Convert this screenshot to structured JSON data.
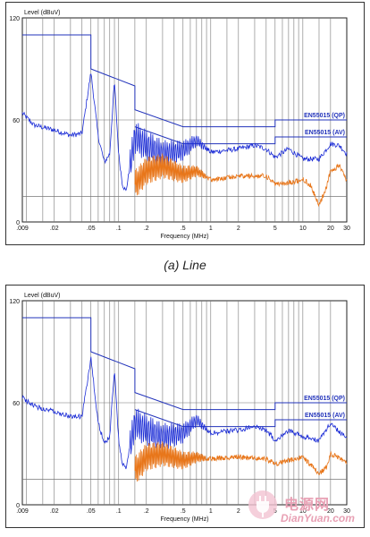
{
  "caption_line": "(a) Line",
  "watermark": {
    "chinese": "电源网",
    "site": "DianYuan.com"
  },
  "colors": {
    "limit": "#2233bb",
    "qp_trace": "#1a2bd6",
    "av_trace": "#e8761a",
    "grid": "#777777"
  },
  "chart_data": [
    {
      "type": "line",
      "ylabel": "Level (dBuV)",
      "xlabel": "Frequency (MHz)",
      "xscale": "log",
      "xlim": [
        0.009,
        30
      ],
      "ylim": [
        0,
        120
      ],
      "yticks": [
        "120",
        "60",
        "0"
      ],
      "xticks": [
        {
          "v": 0.009,
          "label": ".009"
        },
        {
          "v": 0.02,
          "label": ".02"
        },
        {
          "v": 0.05,
          "label": ".05"
        },
        {
          "v": 0.1,
          "label": ".1"
        },
        {
          "v": 0.2,
          "label": ".2"
        },
        {
          "v": 0.5,
          "label": ".5"
        },
        {
          "v": 1,
          "label": "1"
        },
        {
          "v": 2,
          "label": "2"
        },
        {
          "v": 5,
          "label": "5"
        },
        {
          "v": 10,
          "label": "10"
        },
        {
          "v": 20,
          "label": "20"
        },
        {
          "v": 30,
          "label": "30"
        }
      ],
      "limits": [
        {
          "name": "EN55015 (QP)",
          "points": [
            [
              0.009,
              110
            ],
            [
              0.05,
              110
            ],
            [
              0.05,
              90
            ],
            [
              0.15,
              80
            ],
            [
              0.15,
              66
            ],
            [
              0.5,
              56
            ],
            [
              5,
              56
            ],
            [
              5,
              60
            ],
            [
              30,
              60
            ]
          ]
        },
        {
          "name": "EN55015 (AV)",
          "points": [
            [
              0.15,
              56
            ],
            [
              0.5,
              46
            ],
            [
              5,
              46
            ],
            [
              5,
              50
            ],
            [
              30,
              50
            ]
          ]
        }
      ],
      "hline": 15,
      "series": [
        {
          "kind": "qp",
          "points": [
            [
              0.009,
              64
            ],
            [
              0.012,
              57
            ],
            [
              0.02,
              54
            ],
            [
              0.03,
              51
            ],
            [
              0.04,
              52
            ],
            [
              0.05,
              88
            ],
            [
              0.06,
              50
            ],
            [
              0.07,
              35
            ],
            [
              0.08,
              40
            ],
            [
              0.09,
              83
            ],
            [
              0.1,
              40
            ],
            [
              0.11,
              22
            ],
            [
              0.12,
              18
            ],
            [
              0.15,
              50
            ],
            [
              0.2,
              45
            ],
            [
              0.3,
              40
            ],
            [
              0.5,
              42
            ],
            [
              0.7,
              48
            ],
            [
              1,
              41
            ],
            [
              2,
              43
            ],
            [
              3,
              45
            ],
            [
              4,
              43
            ],
            [
              5,
              38
            ],
            [
              7,
              43
            ],
            [
              10,
              37
            ],
            [
              15,
              37
            ],
            [
              20,
              46
            ],
            [
              25,
              45
            ],
            [
              30,
              40
            ]
          ]
        },
        {
          "kind": "av",
          "points": [
            [
              0.15,
              22
            ],
            [
              0.2,
              30
            ],
            [
              0.3,
              33
            ],
            [
              0.5,
              28
            ],
            [
              0.7,
              30
            ],
            [
              1,
              25
            ],
            [
              2,
              27
            ],
            [
              4,
              27
            ],
            [
              5,
              22
            ],
            [
              7,
              23
            ],
            [
              10,
              25
            ],
            [
              12,
              22
            ],
            [
              15,
              10
            ],
            [
              18,
              20
            ],
            [
              20,
              30
            ],
            [
              25,
              33
            ],
            [
              30,
              24
            ]
          ]
        }
      ]
    },
    {
      "type": "line",
      "ylabel": "Level (dBuV)",
      "xlabel": "Frequency (MHz)",
      "xscale": "log",
      "xlim": [
        0.009,
        30
      ],
      "ylim": [
        0,
        120
      ],
      "yticks": [
        "120",
        "60",
        "0"
      ],
      "xticks": [
        {
          "v": 0.009,
          "label": ".009"
        },
        {
          "v": 0.02,
          "label": ".02"
        },
        {
          "v": 0.05,
          "label": ".05"
        },
        {
          "v": 0.1,
          "label": ".1"
        },
        {
          "v": 0.2,
          "label": ".2"
        },
        {
          "v": 0.5,
          "label": ".5"
        },
        {
          "v": 1,
          "label": "1"
        },
        {
          "v": 2,
          "label": "2"
        },
        {
          "v": 5,
          "label": "5"
        },
        {
          "v": 10,
          "label": "10"
        },
        {
          "v": 20,
          "label": "20"
        },
        {
          "v": 30,
          "label": "30"
        }
      ],
      "limits": [
        {
          "name": "EN55015 (QP)",
          "points": [
            [
              0.009,
              110
            ],
            [
              0.05,
              110
            ],
            [
              0.05,
              90
            ],
            [
              0.15,
              80
            ],
            [
              0.15,
              66
            ],
            [
              0.5,
              56
            ],
            [
              5,
              56
            ],
            [
              5,
              60
            ],
            [
              30,
              60
            ]
          ]
        },
        {
          "name": "EN55015 (AV)",
          "points": [
            [
              0.15,
              56
            ],
            [
              0.5,
              46
            ],
            [
              5,
              46
            ],
            [
              5,
              50
            ],
            [
              30,
              50
            ]
          ]
        }
      ],
      "hline": 15,
      "series": [
        {
          "kind": "qp",
          "points": [
            [
              0.009,
              63
            ],
            [
              0.012,
              58
            ],
            [
              0.02,
              55
            ],
            [
              0.03,
              52
            ],
            [
              0.04,
              52
            ],
            [
              0.05,
              86
            ],
            [
              0.06,
              48
            ],
            [
              0.07,
              36
            ],
            [
              0.08,
              40
            ],
            [
              0.09,
              80
            ],
            [
              0.1,
              38
            ],
            [
              0.11,
              24
            ],
            [
              0.12,
              22
            ],
            [
              0.15,
              48
            ],
            [
              0.2,
              44
            ],
            [
              0.3,
              40
            ],
            [
              0.5,
              42
            ],
            [
              0.7,
              50
            ],
            [
              1,
              42
            ],
            [
              2,
              44
            ],
            [
              3,
              46
            ],
            [
              4,
              44
            ],
            [
              5,
              38
            ],
            [
              7,
              44
            ],
            [
              10,
              40
            ],
            [
              15,
              38
            ],
            [
              20,
              48
            ],
            [
              25,
              43
            ],
            [
              30,
              40
            ]
          ]
        },
        {
          "kind": "av",
          "points": [
            [
              0.15,
              20
            ],
            [
              0.2,
              28
            ],
            [
              0.3,
              30
            ],
            [
              0.5,
              26
            ],
            [
              0.7,
              28
            ],
            [
              1,
              27
            ],
            [
              2,
              28
            ],
            [
              4,
              27
            ],
            [
              5,
              24
            ],
            [
              7,
              26
            ],
            [
              10,
              28
            ],
            [
              12,
              24
            ],
            [
              15,
              18
            ],
            [
              18,
              22
            ],
            [
              20,
              30
            ],
            [
              25,
              28
            ],
            [
              30,
              24
            ]
          ]
        }
      ]
    }
  ]
}
